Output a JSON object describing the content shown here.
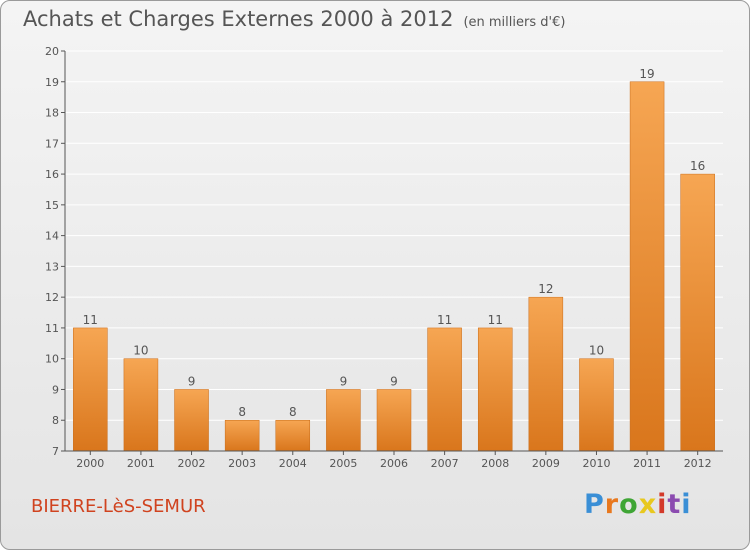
{
  "header": {
    "title": "Achats et Charges Externes 2000 à 2012",
    "subtitle": "(en milliers d'€)"
  },
  "footer": {
    "commune": "BIERRE-LèS-SEMUR",
    "logo_letters": [
      "P",
      "r",
      "o",
      "x",
      "i",
      "t",
      "i"
    ],
    "logo_colors": [
      "#3a8fd6",
      "#e8781e",
      "#3fa535",
      "#e8c81e",
      "#d33a2a",
      "#8b4bb0",
      "#3a8fd6"
    ]
  },
  "chart_data": {
    "type": "bar",
    "categories": [
      "2000",
      "2001",
      "2002",
      "2003",
      "2004",
      "2005",
      "2006",
      "2007",
      "2008",
      "2009",
      "2010",
      "2011",
      "2012"
    ],
    "values": [
      11,
      10,
      9,
      8,
      8,
      9,
      9,
      11,
      11,
      12,
      10,
      19,
      16
    ],
    "data_labels": [
      "11",
      "10",
      "9",
      "8",
      "8",
      "9",
      "9",
      "11",
      "11",
      "12",
      "10",
      "19",
      "16"
    ],
    "ylim": [
      7,
      20
    ],
    "yticks": [
      7,
      8,
      9,
      10,
      11,
      12,
      13,
      14,
      15,
      16,
      17,
      18,
      19,
      20
    ],
    "grid": true,
    "bar_color": "#ef8f2e",
    "grid_color": "#ffffff",
    "axis_color": "#555555",
    "text_color": "#555555"
  }
}
